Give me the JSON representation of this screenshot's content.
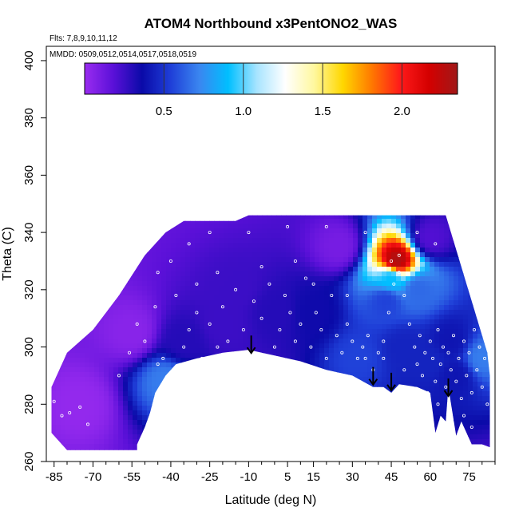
{
  "chart_data": {
    "type": "heatmap",
    "title": "ATOM4 Northbound x3PentONO2_WAS",
    "subtitle_flights": "Flts: 7,8,9,10,11,12",
    "subtitle_dates": "MMDD: 0509,0512,0514,0517,0518,0519",
    "xlabel": "Latitude (deg N)",
    "ylabel": "Theta (C)",
    "xlim": [
      -88,
      85
    ],
    "ylim": [
      260,
      405
    ],
    "x_ticks": [
      -85,
      -70,
      -55,
      -40,
      -25,
      -10,
      5,
      15,
      30,
      45,
      60,
      75
    ],
    "y_ticks": [
      260,
      280,
      300,
      320,
      340,
      360,
      380,
      400
    ],
    "colorbar": {
      "range": [
        0.0,
        2.35
      ],
      "ticks": [
        0.5,
        1.0,
        1.5,
        2.0
      ],
      "tick_labels": [
        "0.5",
        "1.0",
        "1.5",
        "2.0"
      ],
      "colors": [
        "#9a2cf0",
        "#5a10d8",
        "#0a0aa8",
        "#1f3fd8",
        "#3a86f0",
        "#00bfff",
        "#a8e4ff",
        "#ffffff",
        "#fff8a0",
        "#ffd700",
        "#ff7a00",
        "#ff1a1a",
        "#d40000",
        "#a01818"
      ]
    },
    "domain_top": [
      [
        -86,
        286
      ],
      [
        -80,
        298
      ],
      [
        -70,
        306
      ],
      [
        -60,
        318
      ],
      [
        -50,
        332
      ],
      [
        -42,
        340
      ],
      [
        -35,
        344
      ],
      [
        -25,
        344
      ],
      [
        -15,
        344
      ],
      [
        -10,
        346
      ],
      [
        0,
        346
      ],
      [
        10,
        346
      ],
      [
        20,
        346
      ],
      [
        30,
        346
      ],
      [
        40,
        346
      ],
      [
        50,
        346
      ],
      [
        60,
        346
      ],
      [
        66,
        346
      ],
      [
        70,
        334
      ],
      [
        74,
        322
      ],
      [
        78,
        310
      ],
      [
        82,
        298
      ],
      [
        83,
        290
      ]
    ],
    "domain_bottom": [
      [
        83,
        265
      ],
      [
        80,
        266
      ],
      [
        76,
        266
      ],
      [
        74,
        270
      ],
      [
        72,
        274
      ],
      [
        70,
        269
      ],
      [
        67,
        286
      ],
      [
        66,
        274
      ],
      [
        64,
        276
      ],
      [
        62,
        270
      ],
      [
        60,
        284
      ],
      [
        55,
        286
      ],
      [
        48,
        287
      ],
      [
        45,
        284
      ],
      [
        42,
        286
      ],
      [
        38,
        286
      ],
      [
        30,
        290
      ],
      [
        20,
        292
      ],
      [
        10,
        295
      ],
      [
        0,
        297
      ],
      [
        -10,
        299
      ],
      [
        -20,
        298
      ],
      [
        -30,
        296
      ],
      [
        -38,
        294
      ],
      [
        -42,
        290
      ],
      [
        -46,
        284
      ],
      [
        -48,
        277
      ],
      [
        -50,
        272
      ],
      [
        -53,
        266
      ],
      [
        -53,
        264
      ],
      [
        -62,
        264
      ],
      [
        -70,
        264
      ],
      [
        -80,
        264
      ],
      [
        -86,
        270
      ]
    ],
    "hotspots": [
      {
        "lat": 47,
        "theta": 330,
        "value": 2.3
      },
      {
        "lat": 45,
        "theta": 324,
        "value": 0.9
      },
      {
        "lat": 43,
        "theta": 316,
        "value": 0.55
      },
      {
        "lat": 55,
        "theta": 320,
        "value": 0.65
      },
      {
        "lat": 50,
        "theta": 300,
        "value": 0.45
      },
      {
        "lat": 32,
        "theta": 296,
        "value": 0.55
      },
      {
        "lat": -35,
        "theta": 302,
        "value": 0.3
      },
      {
        "lat": -20,
        "theta": 308,
        "value": 0.25
      },
      {
        "lat": -15,
        "theta": 320,
        "value": 0.25
      },
      {
        "lat": 0,
        "theta": 312,
        "value": 0.3
      },
      {
        "lat": 15,
        "theta": 312,
        "value": 0.35
      },
      {
        "lat": 60,
        "theta": 295,
        "value": 0.45
      },
      {
        "lat": 70,
        "theta": 290,
        "value": 0.4
      },
      {
        "lat": 68,
        "theta": 302,
        "value": 0.4
      },
      {
        "lat": 80,
        "theta": 296,
        "value": 0.7
      },
      {
        "lat": -42,
        "theta": 288,
        "value": 0.7
      },
      {
        "lat": -55,
        "theta": 305,
        "value": 0.05
      },
      {
        "lat": -75,
        "theta": 280,
        "value": 0.02
      },
      {
        "lat": 25,
        "theta": 335,
        "value": 0.1
      },
      {
        "lat": 60,
        "theta": 338,
        "value": 0.2
      }
    ],
    "arrows": [
      {
        "lat": -9,
        "theta": 304
      },
      {
        "lat": 38,
        "theta": 293
      },
      {
        "lat": 45,
        "theta": 291
      },
      {
        "lat": 67,
        "theta": 289
      }
    ],
    "samples": [
      [
        -85,
        281
      ],
      [
        -82,
        276
      ],
      [
        -79,
        277
      ],
      [
        -75,
        279
      ],
      [
        -72,
        273
      ],
      [
        -60,
        290
      ],
      [
        -56,
        298
      ],
      [
        -53,
        308
      ],
      [
        -50,
        302
      ],
      [
        -46,
        314
      ],
      [
        -43,
        296
      ],
      [
        -40,
        289
      ],
      [
        -38,
        318
      ],
      [
        -35,
        300
      ],
      [
        -33,
        306
      ],
      [
        -30,
        312
      ],
      [
        -28,
        296
      ],
      [
        -25,
        308
      ],
      [
        -22,
        300
      ],
      [
        -20,
        314
      ],
      [
        -18,
        302
      ],
      [
        -15,
        320
      ],
      [
        -12,
        306
      ],
      [
        -10,
        298
      ],
      [
        -8,
        316
      ],
      [
        -5,
        310
      ],
      [
        -2,
        322
      ],
      [
        0,
        300
      ],
      [
        2,
        306
      ],
      [
        4,
        318
      ],
      [
        6,
        312
      ],
      [
        8,
        302
      ],
      [
        10,
        308
      ],
      [
        12,
        324
      ],
      [
        14,
        300
      ],
      [
        16,
        312
      ],
      [
        18,
        306
      ],
      [
        20,
        296
      ],
      [
        22,
        318
      ],
      [
        24,
        304
      ],
      [
        26,
        298
      ],
      [
        28,
        308
      ],
      [
        30,
        302
      ],
      [
        32,
        296
      ],
      [
        34,
        300
      ],
      [
        36,
        304
      ],
      [
        38,
        292
      ],
      [
        40,
        298
      ],
      [
        42,
        302
      ],
      [
        44,
        312
      ],
      [
        46,
        322
      ],
      [
        48,
        326
      ],
      [
        50,
        318
      ],
      [
        52,
        308
      ],
      [
        54,
        300
      ],
      [
        55,
        294
      ],
      [
        56,
        304
      ],
      [
        57,
        290
      ],
      [
        58,
        298
      ],
      [
        59,
        284
      ],
      [
        60,
        302
      ],
      [
        61,
        296
      ],
      [
        62,
        288
      ],
      [
        63,
        306
      ],
      [
        64,
        294
      ],
      [
        65,
        300
      ],
      [
        66,
        286
      ],
      [
        67,
        298
      ],
      [
        68,
        292
      ],
      [
        69,
        304
      ],
      [
        70,
        288
      ],
      [
        71,
        296
      ],
      [
        72,
        282
      ],
      [
        73,
        302
      ],
      [
        74,
        290
      ],
      [
        75,
        298
      ],
      [
        76,
        284
      ],
      [
        77,
        306
      ],
      [
        78,
        292
      ],
      [
        79,
        300
      ],
      [
        80,
        286
      ],
      [
        81,
        296
      ],
      [
        82,
        280
      ],
      [
        76,
        272
      ],
      [
        73,
        276
      ],
      [
        63,
        280
      ],
      [
        58,
        282
      ],
      [
        50,
        292
      ],
      [
        42,
        296
      ],
      [
        35,
        296
      ],
      [
        -45,
        326
      ],
      [
        -40,
        330
      ],
      [
        -33,
        336
      ],
      [
        -25,
        340
      ],
      [
        -10,
        340
      ],
      [
        5,
        342
      ],
      [
        20,
        342
      ],
      [
        35,
        340
      ],
      [
        55,
        340
      ],
      [
        62,
        336
      ],
      [
        -45,
        294
      ],
      [
        -42,
        286
      ],
      [
        -30,
        322
      ],
      [
        -22,
        326
      ],
      [
        -5,
        328
      ],
      [
        8,
        330
      ],
      [
        15,
        322
      ],
      [
        28,
        318
      ],
      [
        45,
        330
      ],
      [
        48,
        332
      ]
    ]
  }
}
